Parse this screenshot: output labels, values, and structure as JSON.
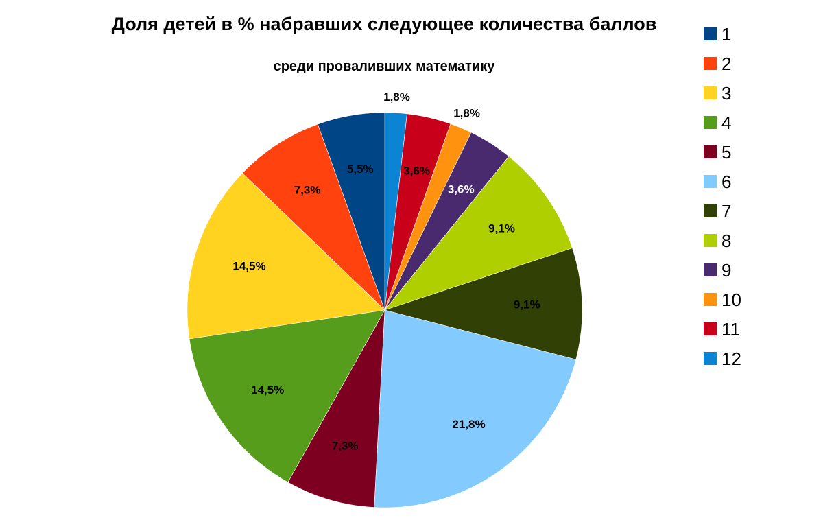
{
  "chart_data": {
    "type": "pie",
    "title": "Доля детей в %  набравших следующее количества баллов",
    "subtitle": "среди проваливших математику",
    "legend_position": "right",
    "start_angle_deg": 0,
    "direction": "clockwise",
    "slices": [
      {
        "name": "12",
        "value": 1.8,
        "label": "1,8%",
        "color": "#0a84d3",
        "label_color": "#000000"
      },
      {
        "name": "11",
        "value": 3.6,
        "label": "3,6%",
        "color": "#c9001a",
        "label_color": "#000000"
      },
      {
        "name": "10",
        "value": 1.8,
        "label": "1,8%",
        "color": "#ff920f",
        "label_color": "#000000"
      },
      {
        "name": "9",
        "value": 3.6,
        "label": "3,6%",
        "color": "#4a2a6f",
        "label_color": "#ffffff"
      },
      {
        "name": "8",
        "value": 9.1,
        "label": "9,1%",
        "color": "#b0cf00",
        "label_color": "#000000"
      },
      {
        "name": "7",
        "value": 9.1,
        "label": "9,1%",
        "color": "#314004",
        "label_color": "#000000"
      },
      {
        "name": "6",
        "value": 21.8,
        "label": "21,8%",
        "color": "#83caff",
        "label_color": "#000000"
      },
      {
        "name": "5",
        "value": 7.3,
        "label": "7,3%",
        "color": "#7e0021",
        "label_color": "#000000"
      },
      {
        "name": "4",
        "value": 14.5,
        "label": "14,5%",
        "color": "#579d1c",
        "label_color": "#000000"
      },
      {
        "name": "3",
        "value": 14.5,
        "label": "14,5%",
        "color": "#ffd320",
        "label_color": "#000000"
      },
      {
        "name": "2",
        "value": 7.3,
        "label": "7,3%",
        "color": "#ff420e",
        "label_color": "#000000"
      },
      {
        "name": "1",
        "value": 5.5,
        "label": "5,5%",
        "color": "#004586",
        "label_color": "#000000"
      }
    ],
    "legend": [
      {
        "label": "1",
        "color": "#004586"
      },
      {
        "label": "2",
        "color": "#ff420e"
      },
      {
        "label": "3",
        "color": "#ffd320"
      },
      {
        "label": "4",
        "color": "#579d1c"
      },
      {
        "label": "5",
        "color": "#7e0021"
      },
      {
        "label": "6",
        "color": "#83caff"
      },
      {
        "label": "7",
        "color": "#314004"
      },
      {
        "label": "8",
        "color": "#b0cf00"
      },
      {
        "label": "9",
        "color": "#4a2a6f"
      },
      {
        "label": "10",
        "color": "#ff920f"
      },
      {
        "label": "11",
        "color": "#c9001a"
      },
      {
        "label": "12",
        "color": "#0a84d3"
      }
    ]
  }
}
